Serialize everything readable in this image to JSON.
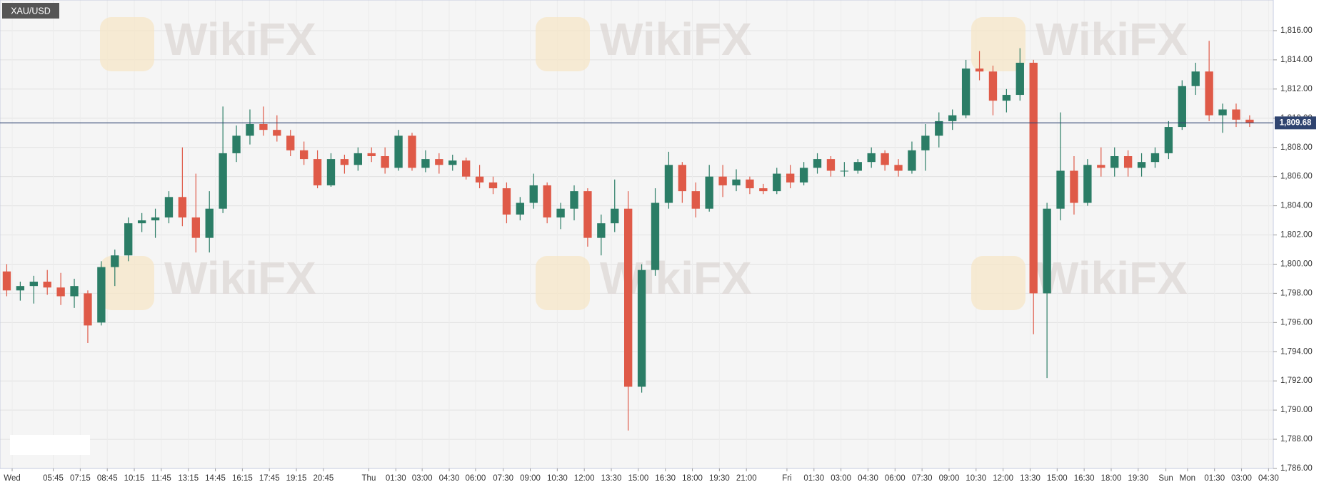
{
  "chart_data": {
    "type": "candlestick",
    "title": "XAU/USD",
    "watermark": "WikiFX",
    "up_color": "#2b7d66",
    "down_color": "#df5a48",
    "grid": true,
    "ylim": [
      1786,
      1818.1
    ],
    "yticks": [
      {
        "value": 1786,
        "label": "1,786.00"
      },
      {
        "value": 1788,
        "label": "1,788.00"
      },
      {
        "value": 1790,
        "label": "1,790.00"
      },
      {
        "value": 1792,
        "label": "1,792.00"
      },
      {
        "value": 1794,
        "label": "1,794.00"
      },
      {
        "value": 1796,
        "label": "1,796.00"
      },
      {
        "value": 1798,
        "label": "1,798.00"
      },
      {
        "value": 1800,
        "label": "1,800.00"
      },
      {
        "value": 1802,
        "label": "1,802.00"
      },
      {
        "value": 1804,
        "label": "1,804.00"
      },
      {
        "value": 1806,
        "label": "1,806.00"
      },
      {
        "value": 1808,
        "label": "1,808.00"
      },
      {
        "value": 1810,
        "label": "1,810.00"
      },
      {
        "value": 1812,
        "label": "1,812.00"
      },
      {
        "value": 1814,
        "label": "1,814.00"
      },
      {
        "value": 1816,
        "label": "1,816.00"
      }
    ],
    "xlim": [
      0,
      94.25
    ],
    "xticks": [
      {
        "value": 0.9,
        "label": "Wed"
      },
      {
        "value": 3.94,
        "label": "05:45"
      },
      {
        "value": 5.94,
        "label": "07:15"
      },
      {
        "value": 7.94,
        "label": "08:45"
      },
      {
        "value": 9.94,
        "label": "10:15"
      },
      {
        "value": 11.94,
        "label": "11:45"
      },
      {
        "value": 13.94,
        "label": "13:15"
      },
      {
        "value": 15.94,
        "label": "14:45"
      },
      {
        "value": 17.94,
        "label": "16:15"
      },
      {
        "value": 19.94,
        "label": "17:45"
      },
      {
        "value": 21.94,
        "label": "19:15"
      },
      {
        "value": 23.94,
        "label": "20:45"
      },
      {
        "value": 27.3,
        "label": "Thu"
      },
      {
        "value": 29.3,
        "label": "01:30"
      },
      {
        "value": 31.25,
        "label": "03:00"
      },
      {
        "value": 33.25,
        "label": "04:30"
      },
      {
        "value": 35.2,
        "label": "06:00"
      },
      {
        "value": 37.25,
        "label": "07:30"
      },
      {
        "value": 39.25,
        "label": "09:00"
      },
      {
        "value": 41.25,
        "label": "10:30"
      },
      {
        "value": 43.25,
        "label": "12:00"
      },
      {
        "value": 45.25,
        "label": "13:30"
      },
      {
        "value": 47.25,
        "label": "15:00"
      },
      {
        "value": 49.25,
        "label": "16:30"
      },
      {
        "value": 51.25,
        "label": "18:00"
      },
      {
        "value": 53.25,
        "label": "19:30"
      },
      {
        "value": 55.25,
        "label": "21:00"
      },
      {
        "value": 58.25,
        "label": "Fri"
      },
      {
        "value": 60.25,
        "label": "01:30"
      },
      {
        "value": 62.25,
        "label": "03:00"
      },
      {
        "value": 64.25,
        "label": "04:30"
      },
      {
        "value": 66.25,
        "label": "06:00"
      },
      {
        "value": 68.25,
        "label": "07:30"
      },
      {
        "value": 70.25,
        "label": "09:00"
      },
      {
        "value": 72.25,
        "label": "10:30"
      },
      {
        "value": 74.25,
        "label": "12:00"
      },
      {
        "value": 76.25,
        "label": "13:30"
      },
      {
        "value": 78.25,
        "label": "15:00"
      },
      {
        "value": 80.25,
        "label": "16:30"
      },
      {
        "value": 82.25,
        "label": "18:00"
      },
      {
        "value": 84.25,
        "label": "19:30"
      },
      {
        "value": 86.3,
        "label": "Sun"
      },
      {
        "value": 87.9,
        "label": "Mon"
      },
      {
        "value": 89.9,
        "label": "01:30"
      },
      {
        "value": 91.9,
        "label": "03:00"
      },
      {
        "value": 93.9,
        "label": "04:30"
      }
    ],
    "open": [
      1799.5,
      1798.2,
      1798.5,
      1798.8,
      1798.4,
      1797.8,
      1798,
      1796,
      1799.8,
      1800.6,
      1802.8,
      1803,
      1803.2,
      1804.6,
      1803.2,
      1801.8,
      1803.8,
      1807.6,
      1808.8,
      1809.6,
      1809.2,
      1808.8,
      1807.8,
      1807.2,
      1805.4,
      1807.2,
      1806.8,
      1807.6,
      1807.4,
      1806.6,
      1808.8,
      1806.6,
      1807.2,
      1806.8,
      1807.1,
      1806,
      1805.6,
      1805.2,
      1803.4,
      1804.2,
      1805.4,
      1803.2,
      1803.8,
      1805,
      1801.8,
      1802.8,
      1803.8,
      1791.6,
      1799.6,
      1804.2,
      1806.8,
      1805,
      1803.8,
      1806,
      1805.4,
      1805.8,
      1805.2,
      1805,
      1806.2,
      1805.6,
      1806.6,
      1807.2,
      1806.4,
      1806.4,
      1807,
      1807.6,
      1806.8,
      1806.4,
      1807.8,
      1808.8,
      1809.8,
      1810.2,
      1813.4,
      1813.2,
      1811.2,
      1811.6,
      1813.8,
      1798,
      1803.8,
      1806.4,
      1804.2,
      1806.8,
      1806.6,
      1807.4,
      1806.6,
      1807,
      1807.6,
      1809.4,
      1812.2,
      1813.2,
      1810.2,
      1810.6,
      1809.9
    ],
    "high": [
      1800,
      1798.8,
      1799.2,
      1799.6,
      1799.4,
      1799,
      1798.2,
      1800.2,
      1801,
      1803.2,
      1803.5,
      1803.8,
      1805,
      1808,
      1806.2,
      1805,
      1810.8,
      1809.5,
      1810.6,
      1810.8,
      1810.2,
      1809.2,
      1808.4,
      1807.8,
      1807.6,
      1807.5,
      1808,
      1808,
      1808,
      1809.2,
      1809,
      1807.8,
      1807.6,
      1807.5,
      1807.3,
      1806.8,
      1806,
      1805.6,
      1804.6,
      1806.2,
      1805.6,
      1804.2,
      1805.4,
      1805.2,
      1803.4,
      1805.8,
      1805,
      1800,
      1805.2,
      1807.7,
      1807,
      1805.6,
      1806.8,
      1806.8,
      1806.5,
      1806,
      1805.5,
      1806.6,
      1806.8,
      1807,
      1807.6,
      1807.4,
      1807,
      1807.2,
      1808,
      1807.8,
      1807.2,
      1808.4,
      1809.6,
      1810.4,
      1810.6,
      1814,
      1814.6,
      1813.6,
      1812,
      1814.8,
      1814,
      1804.2,
      1810.4,
      1807.4,
      1807.2,
      1808,
      1808,
      1807.8,
      1807.6,
      1808,
      1809.8,
      1812.6,
      1813.8,
      1815.3,
      1811,
      1811,
      1810.2
    ],
    "low": [
      1797.8,
      1797.5,
      1797.3,
      1797.9,
      1797.2,
      1797,
      1794.6,
      1795.8,
      1798.5,
      1800.2,
      1802.2,
      1801.8,
      1802.8,
      1802.6,
      1800.8,
      1800.8,
      1803.5,
      1807,
      1808.2,
      1808.8,
      1808.4,
      1807.4,
      1806.8,
      1805.2,
      1805.3,
      1806.2,
      1806.4,
      1807,
      1806.2,
      1806.4,
      1806.4,
      1806.3,
      1806.2,
      1806.4,
      1805.8,
      1805.2,
      1804.8,
      1802.8,
      1803,
      1803.8,
      1802.8,
      1802.4,
      1803,
      1801.2,
      1800.6,
      1802.2,
      1788.6,
      1791.2,
      1799.2,
      1803.8,
      1804.2,
      1803.2,
      1803.6,
      1804.6,
      1805,
      1804.8,
      1804.8,
      1804.8,
      1805.2,
      1805.4,
      1806.2,
      1806,
      1806,
      1806.2,
      1806.6,
      1806.4,
      1806,
      1806.2,
      1806.4,
      1808,
      1809.2,
      1810,
      1812.6,
      1810.2,
      1810.4,
      1811.2,
      1795.2,
      1792.2,
      1803,
      1803.4,
      1804,
      1806,
      1806,
      1806,
      1806,
      1806.6,
      1807.2,
      1809.2,
      1811.6,
      1809.8,
      1809,
      1809.4,
      1809.4
    ],
    "close": [
      1798.2,
      1798.5,
      1798.8,
      1798.4,
      1797.8,
      1798.5,
      1795.8,
      1799.8,
      1800.6,
      1802.8,
      1803,
      1803.2,
      1804.6,
      1803.2,
      1801.8,
      1803.8,
      1807.6,
      1808.8,
      1809.6,
      1809.2,
      1808.8,
      1807.8,
      1807.2,
      1805.4,
      1807.2,
      1806.8,
      1807.6,
      1807.4,
      1806.6,
      1808.8,
      1806.6,
      1807.2,
      1806.8,
      1807.1,
      1806,
      1805.6,
      1805.2,
      1803.4,
      1804.2,
      1805.4,
      1803.2,
      1803.8,
      1805,
      1801.8,
      1802.8,
      1803.8,
      1791.6,
      1799.6,
      1804.2,
      1806.8,
      1805,
      1803.8,
      1806,
      1805.4,
      1805.8,
      1805.2,
      1805,
      1806.2,
      1805.6,
      1806.6,
      1807.2,
      1806.4,
      1806.4,
      1807,
      1807.6,
      1806.8,
      1806.4,
      1807.8,
      1808.8,
      1809.8,
      1810.2,
      1813.4,
      1813.2,
      1811.2,
      1811.6,
      1813.8,
      1798,
      1803.8,
      1806.4,
      1804.2,
      1806.8,
      1806.6,
      1807.4,
      1806.6,
      1807,
      1807.6,
      1809.4,
      1812.2,
      1813.2,
      1810.2,
      1810.6,
      1809.9,
      1809.68
    ],
    "last_price": {
      "value": 1809.68,
      "label": "1,809.68"
    }
  }
}
